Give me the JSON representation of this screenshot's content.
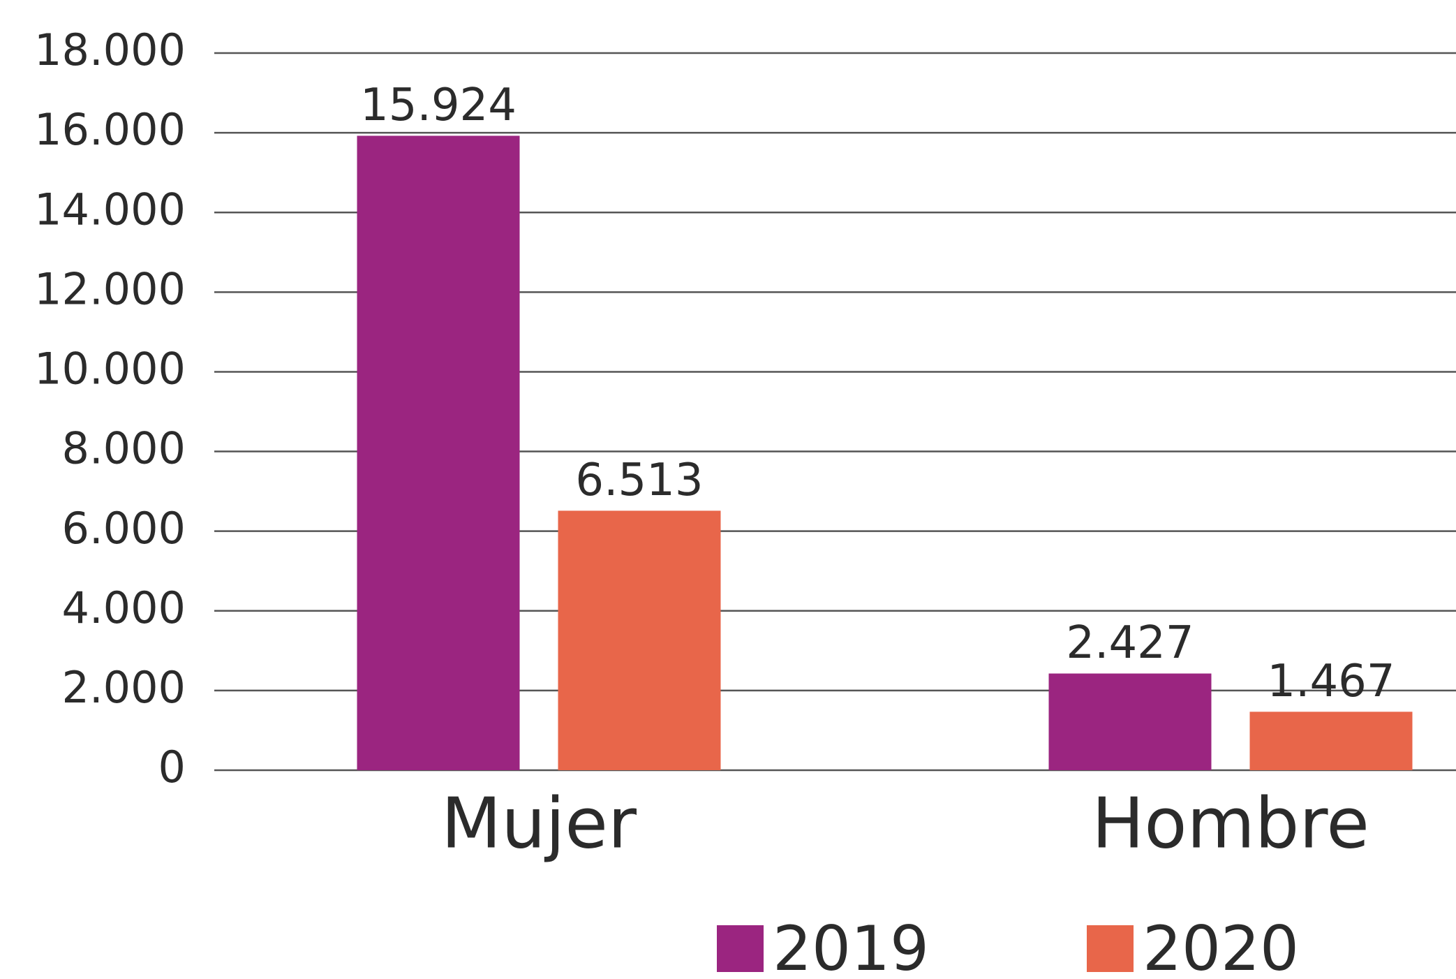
{
  "chart_data": {
    "type": "bar",
    "categories": [
      "Mujer",
      "Hombre"
    ],
    "series": [
      {
        "name": "2019",
        "color": "#9b2580",
        "values": [
          15924,
          2427
        ],
        "value_labels": [
          "15.924",
          "2.427"
        ]
      },
      {
        "name": "2020",
        "color": "#e8664a",
        "values": [
          6513,
          1467
        ],
        "value_labels": [
          "6.513",
          "1.467"
        ]
      }
    ],
    "ylim": [
      0,
      18000
    ],
    "yticks": [
      0,
      {
        "value": 2000,
        "label": "2.000"
      },
      {
        "value": 4000,
        "label": "4.000"
      },
      {
        "value": 6000,
        "label": "6.000"
      },
      {
        "value": 8000,
        "label": "8.000"
      },
      {
        "value": 10000,
        "label": "10.000"
      },
      {
        "value": 12000,
        "label": "12.000"
      },
      {
        "value": 14000,
        "label": "14.000"
      },
      {
        "value": 16000,
        "label": "16.000"
      },
      {
        "value": 18000,
        "label": "18.000"
      }
    ],
    "grid": true,
    "legend": "bottom"
  }
}
